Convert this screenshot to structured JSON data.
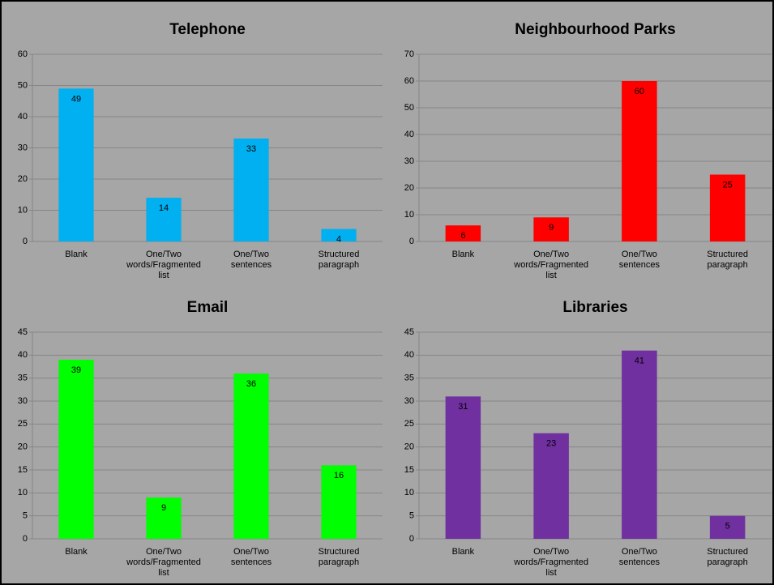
{
  "chart_data": [
    {
      "type": "bar",
      "title": "Telephone",
      "categories": [
        "Blank",
        "One/Two words/Fragmented list",
        "One/Two sentences",
        "Structured paragraph"
      ],
      "values": [
        49,
        14,
        33,
        4
      ],
      "color": "#00b0f0",
      "ylim": [
        0,
        60
      ],
      "yticks": [
        0,
        10,
        20,
        30,
        40,
        50,
        60
      ],
      "grid": true
    },
    {
      "type": "bar",
      "title": "Neighbourhood Parks",
      "categories": [
        "Blank",
        "One/Two words/Fragmented list",
        "One/Two sentences",
        "Structured paragraph"
      ],
      "values": [
        6,
        9,
        60,
        25
      ],
      "color": "#ff0000",
      "ylim": [
        0,
        70
      ],
      "yticks": [
        0,
        10,
        20,
        30,
        40,
        50,
        60,
        70
      ],
      "grid": true
    },
    {
      "type": "bar",
      "title": "Email",
      "categories": [
        "Blank",
        "One/Two words/Fragmented list",
        "One/Two sentences",
        "Structured paragraph"
      ],
      "values": [
        39,
        9,
        36,
        16
      ],
      "color": "#00ff00",
      "ylim": [
        0,
        45
      ],
      "yticks": [
        0,
        5,
        10,
        15,
        20,
        25,
        30,
        35,
        40,
        45
      ],
      "grid": true
    },
    {
      "type": "bar",
      "title": "Libraries",
      "categories": [
        "Blank",
        "One/Two words/Fragmented list",
        "One/Two sentences",
        "Structured paragraph"
      ],
      "values": [
        31,
        23,
        41,
        5
      ],
      "color": "#7030a0",
      "ylim": [
        0,
        45
      ],
      "yticks": [
        0,
        5,
        10,
        15,
        20,
        25,
        30,
        35,
        40,
        45
      ],
      "grid": true
    }
  ]
}
